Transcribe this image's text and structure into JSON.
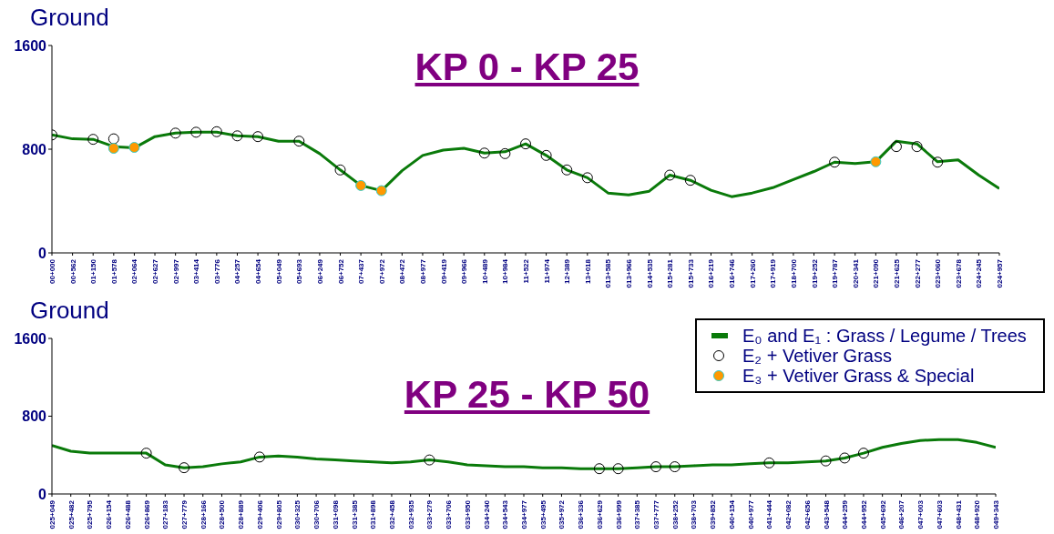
{
  "chart_data": [
    {
      "type": "line",
      "title": "KP 0 - KP 25",
      "ylabel": "Ground",
      "ylim": [
        0,
        1600
      ],
      "yticks": [
        0,
        800,
        1600
      ],
      "legend": false,
      "categories": [
        "00+000",
        "00+562",
        "01+150",
        "01+578",
        "02+064",
        "02+627",
        "02+997",
        "03+414",
        "03+776",
        "04+257",
        "04+654",
        "05+049",
        "05+693",
        "06+249",
        "06+752",
        "07+437",
        "07+972",
        "08+472",
        "08+977",
        "09+419",
        "09+966",
        "10+489",
        "10+984",
        "11+522",
        "11+974",
        "12+389",
        "13+018",
        "013+585",
        "013+966",
        "014+535",
        "015+281",
        "015+733",
        "016+219",
        "016+746",
        "017+260",
        "017+919",
        "018+700",
        "019+252",
        "019+787",
        "020+341",
        "021+090",
        "021+625",
        "022+277",
        "023+060",
        "023+678",
        "024+245",
        "024+957"
      ],
      "series": [
        {
          "color": "#0a7a0a",
          "marker": "none",
          "line_style": "solid",
          "values": [
            910,
            880,
            876,
            820,
            810,
            897,
            924,
            931,
            931,
            903,
            897,
            862,
            862,
            766,
            640,
            520,
            480,
            634,
            752,
            793,
            807,
            770,
            780,
            841,
            752,
            640,
            580,
            462,
            448,
            476,
            600,
            560,
            483,
            434,
            462,
            503,
            566,
            628,
            700,
            690,
            703,
            862,
            841,
            703,
            717,
            600,
            497
          ]
        },
        {
          "type": "scatter",
          "color": "#000000",
          "marker": "circle",
          "values": [
            910,
            null,
            876,
            880,
            null,
            null,
            924,
            931,
            935,
            903,
            897,
            null,
            862,
            null,
            640,
            null,
            null,
            null,
            null,
            null,
            null,
            770,
            766,
            841,
            752,
            640,
            580,
            null,
            null,
            null,
            600,
            560,
            null,
            null,
            null,
            null,
            null,
            null,
            700,
            null,
            null,
            820,
            820,
            700,
            null,
            null,
            null
          ]
        },
        {
          "type": "scatter",
          "color": "#ff9900",
          "marker": "circle",
          "values": [
            null,
            null,
            null,
            807,
            814,
            null,
            null,
            null,
            null,
            null,
            null,
            null,
            null,
            null,
            null,
            520,
            480,
            null,
            null,
            null,
            null,
            null,
            null,
            null,
            null,
            null,
            null,
            null,
            null,
            null,
            null,
            null,
            null,
            null,
            null,
            null,
            null,
            null,
            null,
            null,
            703,
            null,
            null,
            null,
            null,
            null,
            null
          ]
        }
      ]
    },
    {
      "type": "line",
      "title": "KP 25 - KP 50",
      "ylabel": "Ground",
      "ylim": [
        0,
        1600
      ],
      "yticks": [
        0,
        800,
        1600
      ],
      "legend": "top right",
      "categories": [
        "025+049",
        "025+482",
        "025+795",
        "026+154",
        "026+488",
        "026+869",
        "027+183",
        "027+779",
        "028+166",
        "028+500",
        "028+889",
        "029+406",
        "029+805",
        "030+325",
        "030+706",
        "031+098",
        "031+385",
        "031+898",
        "032+458",
        "032+935",
        "033+279",
        "033+706",
        "033+950",
        "034+240",
        "034+543",
        "034+977",
        "035+495",
        "035+972",
        "036+336",
        "036+629",
        "036+999",
        "037+385",
        "037+777",
        "038+252",
        "038+703",
        "039+852",
        "040+154",
        "040+977",
        "041+444",
        "042+082",
        "042+656",
        "043+548",
        "044+259",
        "044+952",
        "045+692",
        "046+207",
        "047+003",
        "047+603",
        "048+431",
        "048+920",
        "049+343"
      ],
      "series": [
        {
          "name": "E₀ and E₁ : Grass / Legume / Trees",
          "color": "#0a7a0a",
          "marker": "none",
          "line_style": "solid",
          "values": [
            500,
            440,
            420,
            420,
            420,
            420,
            300,
            270,
            280,
            310,
            330,
            380,
            390,
            380,
            360,
            350,
            340,
            330,
            320,
            330,
            350,
            330,
            300,
            290,
            280,
            280,
            270,
            270,
            260,
            260,
            260,
            270,
            280,
            280,
            290,
            300,
            300,
            310,
            320,
            320,
            330,
            340,
            370,
            420,
            480,
            520,
            550,
            560,
            560,
            530,
            480
          ]
        },
        {
          "type": "scatter",
          "name": "E₂ + Vetiver Grass",
          "color": "#000000",
          "marker": "circle",
          "values": [
            null,
            null,
            null,
            null,
            null,
            420,
            null,
            270,
            null,
            null,
            null,
            380,
            null,
            null,
            null,
            null,
            null,
            null,
            null,
            null,
            350,
            null,
            null,
            null,
            null,
            null,
            null,
            null,
            null,
            260,
            260,
            null,
            280,
            280,
            null,
            null,
            null,
            null,
            320,
            null,
            null,
            340,
            370,
            420,
            null,
            null,
            null,
            null,
            null,
            null,
            null
          ]
        },
        {
          "type": "scatter",
          "name": "E₃ + Vetiver Grass & Special",
          "color": "#ff9900",
          "marker": "circle",
          "values": [
            null,
            null,
            null,
            null,
            null,
            null,
            null,
            null,
            null,
            null,
            null,
            null,
            null,
            null,
            null,
            null,
            null,
            null,
            null,
            null,
            null,
            null,
            null,
            null,
            null,
            null,
            null,
            null,
            null,
            null,
            null,
            null,
            null,
            null,
            null,
            null,
            null,
            null,
            null,
            null,
            null,
            null,
            null,
            null,
            null,
            null,
            null,
            null,
            null,
            null,
            null
          ]
        }
      ]
    }
  ]
}
